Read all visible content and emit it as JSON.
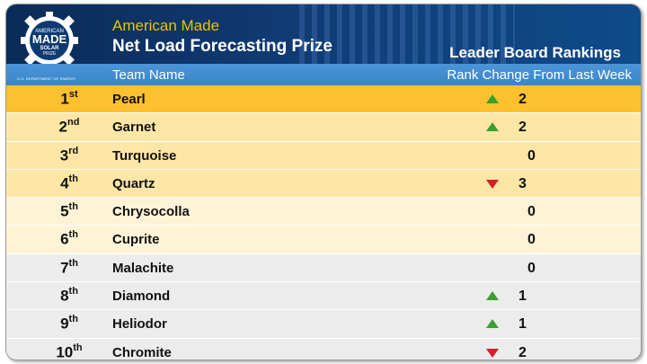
{
  "header": {
    "subtitle": "American Made",
    "title": "Net Load Forecasting Prize",
    "board_title": "Leader Board Rankings"
  },
  "logo": {
    "line1": "AMERICAN",
    "line2": "MADE",
    "line3": "SOLAR",
    "line4": "PRIZE",
    "dept": "U.S. DEPARTMENT OF ENERGY"
  },
  "columns": {
    "team": "Team Name",
    "change": "Rank Change From Last Week"
  },
  "colors": {
    "up": "#3aa02e",
    "down": "#d21f2b",
    "row_gold": "#fdc12f",
    "row_yellow": "#fde6a6",
    "row_cream": "#fef3d6",
    "row_gray": "#ececec"
  },
  "rows": [
    {
      "rank": "1",
      "suffix": "st",
      "team": "Pearl",
      "direction": "up",
      "change": "2"
    },
    {
      "rank": "2",
      "suffix": "nd",
      "team": "Garnet",
      "direction": "up",
      "change": "2"
    },
    {
      "rank": "3",
      "suffix": "rd",
      "team": "Turquoise",
      "direction": "none",
      "change": "0"
    },
    {
      "rank": "4",
      "suffix": "th",
      "team": "Quartz",
      "direction": "down",
      "change": "3"
    },
    {
      "rank": "5",
      "suffix": "th",
      "team": "Chrysocolla",
      "direction": "none",
      "change": "0"
    },
    {
      "rank": "6",
      "suffix": "th",
      "team": "Cuprite",
      "direction": "none",
      "change": "0"
    },
    {
      "rank": "7",
      "suffix": "th",
      "team": "Malachite",
      "direction": "none",
      "change": "0"
    },
    {
      "rank": "8",
      "suffix": "th",
      "team": "Diamond",
      "direction": "up",
      "change": "1"
    },
    {
      "rank": "9",
      "suffix": "th",
      "team": "Heliodor",
      "direction": "up",
      "change": "1"
    },
    {
      "rank": "10",
      "suffix": "th",
      "team": "Chromite",
      "direction": "down",
      "change": "2"
    }
  ]
}
